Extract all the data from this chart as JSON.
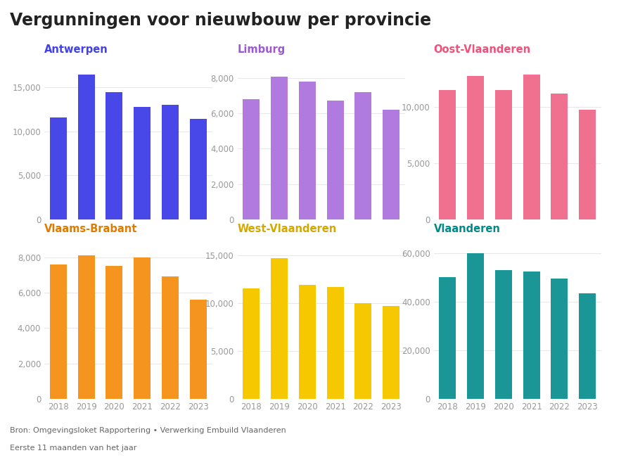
{
  "title": "Vergunningen voor nieuwbouw per provincie",
  "title_color": "#222222",
  "title_fontsize": 17,
  "footnote1": "Bron: Omgevingsloket Rapportering • Verwerking Embuild Vlaanderen",
  "footnote2": "Eerste 11 maanden van het jaar",
  "years": [
    "2018",
    "2019",
    "2020",
    "2021",
    "2022",
    "2023"
  ],
  "subplots": [
    {
      "name": "Antwerpen",
      "name_color": "#4040ee",
      "bar_color": "#4848e8",
      "values": [
        11600,
        16500,
        14500,
        12750,
        13000,
        11400
      ],
      "yticks": [
        0,
        5000,
        10000,
        15000
      ],
      "ylim": [
        0,
        18500
      ],
      "show_xticks": false
    },
    {
      "name": "Limburg",
      "name_color": "#9b59d0",
      "bar_color": "#b07adf",
      "values": [
        6800,
        8050,
        7800,
        6700,
        7200,
        6200
      ],
      "yticks": [
        0,
        2000,
        4000,
        6000,
        8000
      ],
      "ylim": [
        0,
        9200
      ],
      "show_xticks": false
    },
    {
      "name": "Oost-Vlaanderen",
      "name_color": "#f0517a",
      "bar_color": "#f07090",
      "values": [
        11500,
        12800,
        11500,
        12900,
        11200,
        9800
      ],
      "yticks": [
        0,
        5000,
        10000
      ],
      "ylim": [
        0,
        14500
      ],
      "show_xticks": false
    },
    {
      "name": "Vlaams-Brabant",
      "name_color": "#e07b00",
      "bar_color": "#f59520",
      "values": [
        7600,
        8100,
        7500,
        8000,
        6900,
        5600
      ],
      "yticks": [
        0,
        2000,
        4000,
        6000,
        8000
      ],
      "ylim": [
        0,
        9200
      ],
      "show_xticks": true
    },
    {
      "name": "West-Vlaanderen",
      "name_color": "#d4a800",
      "bar_color": "#f5c800",
      "values": [
        11500,
        14700,
        11900,
        11700,
        10000,
        9700
      ],
      "yticks": [
        0,
        5000,
        10000,
        15000
      ],
      "ylim": [
        0,
        17000
      ],
      "show_xticks": true
    },
    {
      "name": "Vlaanderen",
      "name_color": "#008b8b",
      "bar_color": "#1a9696",
      "values": [
        50000,
        59800,
        53000,
        52500,
        49500,
        43500
      ],
      "yticks": [
        0,
        20000,
        40000,
        60000
      ],
      "ylim": [
        0,
        67000
      ],
      "show_xticks": true
    }
  ],
  "background_color": "#ffffff",
  "grid_color": "#e8e8e8",
  "tick_color": "#999999",
  "tick_fontsize": 8.5,
  "name_fontsize": 10.5
}
